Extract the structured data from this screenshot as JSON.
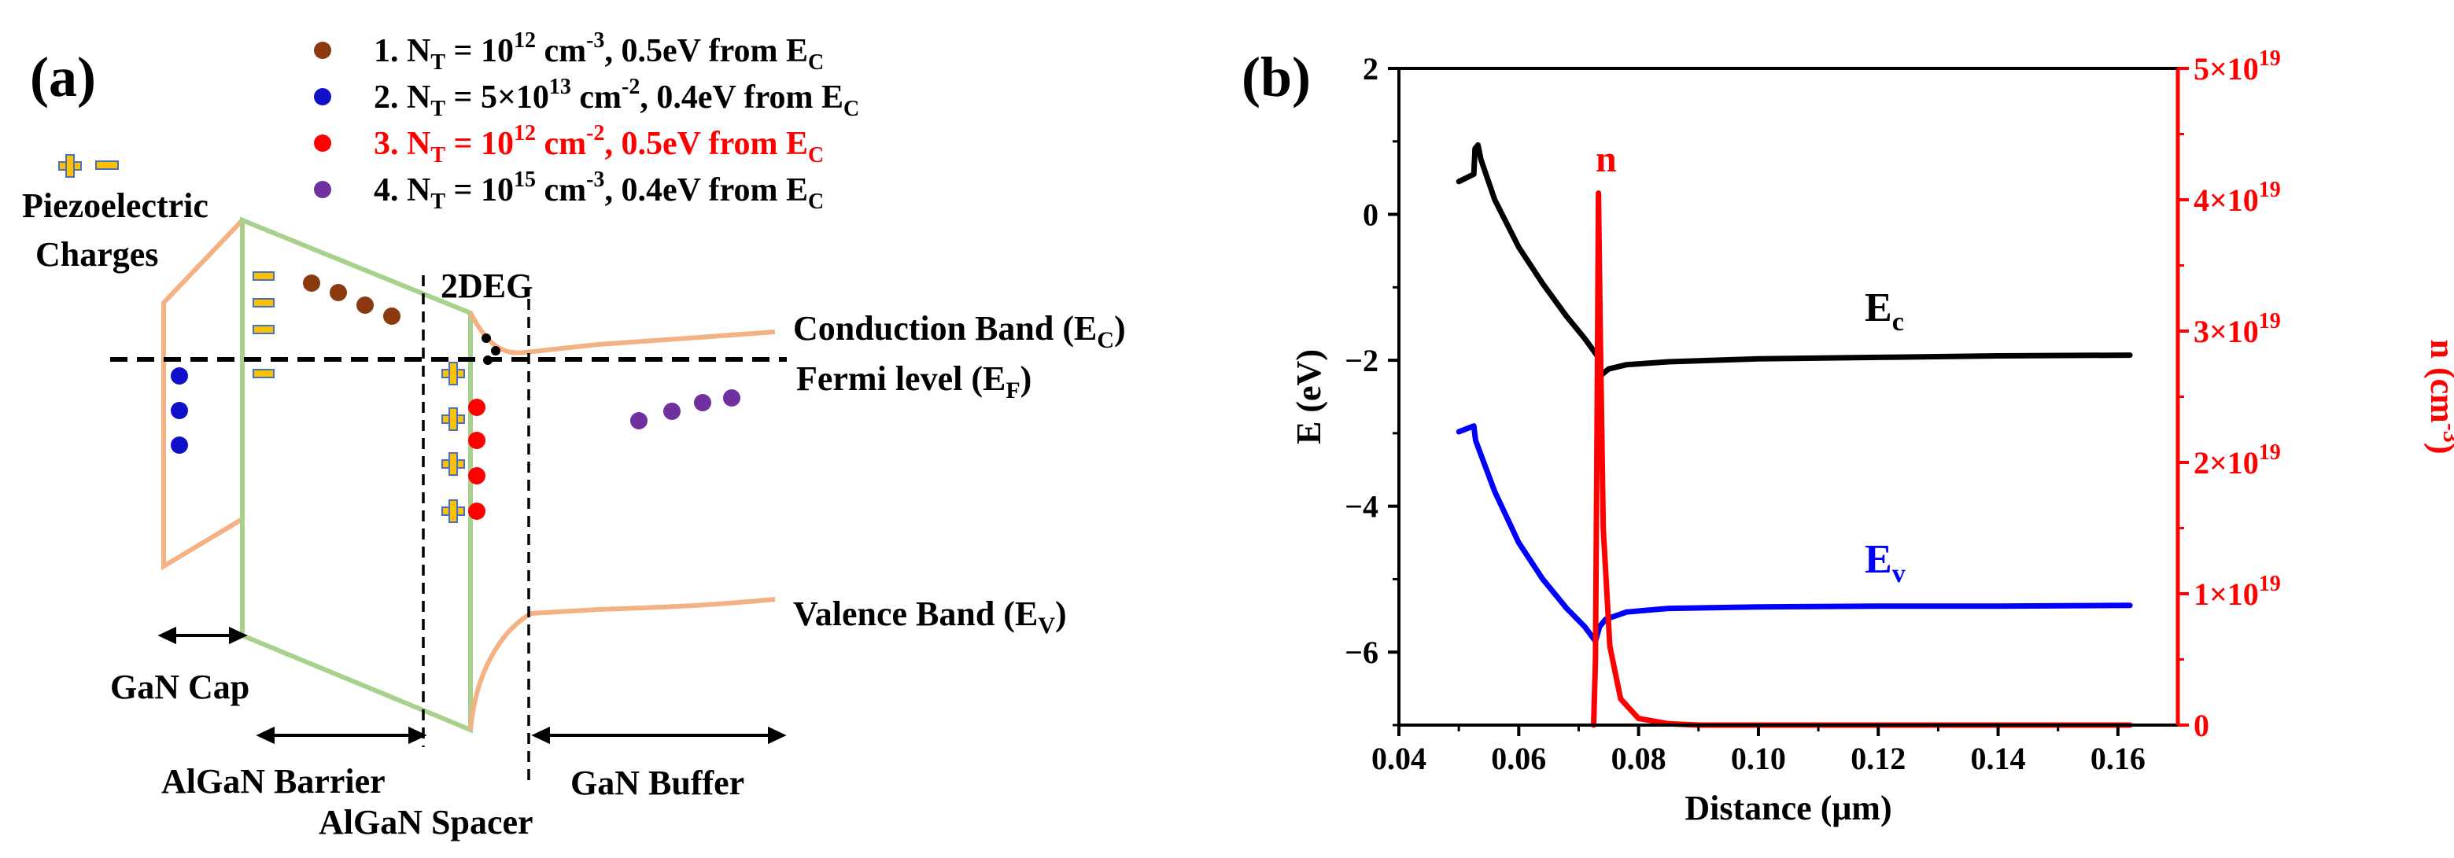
{
  "panel_a": {
    "panel_label": "(a)",
    "legend": [
      {
        "num": "1.",
        "pre": "N",
        "sub": "T",
        "mid1": " = 10",
        "sup": "12",
        "mid2": " cm",
        "sup2": "-3",
        "post": ", 0.5eV from E",
        "sub2": "C",
        "color": "#8B3A0F",
        "text_color": "#000000"
      },
      {
        "num": "2.",
        "pre": "N",
        "sub": "T",
        "mid1": " = 5×10",
        "sup": "13",
        "mid2": " cm",
        "sup2": "-2",
        "post": ", 0.4eV from E",
        "sub2": "C",
        "color": "#1010C8",
        "text_color": "#000000"
      },
      {
        "num": "3.",
        "pre": "N",
        "sub": "T",
        "mid1": " = 10",
        "sup": "12",
        "mid2": " cm",
        "sup2": "-2",
        "post": ", 0.5eV from E",
        "sub2": "C",
        "color": "#FF0000",
        "text_color": "#FF0000"
      },
      {
        "num": "4.",
        "pre": "N",
        "sub": "T",
        "mid1": " = 10",
        "sup": "15",
        "mid2": " cm",
        "sup2": "-3",
        "post": ", 0.4eV from E",
        "sub2": "C",
        "color": "#7030A0",
        "text_color": "#000000"
      }
    ],
    "piezo_label_1": "Piezoelectric",
    "piezo_label_2": "Charges",
    "twodeg_label": "2DEG",
    "cb_label": "Conduction Band (E",
    "cb_sub": "C",
    "ef_label": "Fermi level (E",
    "ef_sub": "F",
    "vb_label": "Valence Band (E",
    "vb_sub": "V",
    "region_labels": {
      "gan_cap": "GaN Cap",
      "algan_barrier": "AlGaN Barrier",
      "algan_spacer": "AlGaN Spacer",
      "gan_buffer": "GaN Buffer"
    },
    "colors": {
      "band_orange": "#F4B183",
      "band_green": "#A9D18E",
      "charge_yellow": "#FFC000",
      "charge_blue": "#4472C4"
    }
  },
  "panel_b": {
    "panel_label": "(b)",
    "curve_label_n": "n",
    "curve_label_ec": "E",
    "curve_label_ec_sub": "c",
    "curve_label_ev": "E",
    "curve_label_ev_sub": "v",
    "chart_data": {
      "type": "line",
      "xlabel": "Distance (μm)",
      "ylabel": "E (eV)",
      "y2label_base": "n (cm",
      "y2label_sup": "-3",
      "xlim": [
        0.04,
        0.17
      ],
      "ylim": [
        -7,
        2
      ],
      "y2lim": [
        0,
        5e+19
      ],
      "x_ticks": [
        0.04,
        0.06,
        0.08,
        0.1,
        0.12,
        0.14,
        0.16
      ],
      "x_tick_labels": [
        "0.04",
        "0.06",
        "0.08",
        "0.10",
        "0.12",
        "0.14",
        "0.16"
      ],
      "y_ticks": [
        2,
        0,
        -2,
        -4,
        -6
      ],
      "y_tick_labels": [
        "2",
        "0",
        "−2",
        "−4",
        "−6"
      ],
      "y2_ticks": [
        0,
        1e+19,
        2e+19,
        3e+19,
        4e+19,
        5e+19
      ],
      "y2_tick_labels": [
        {
          "base": "0",
          "exp": ""
        },
        {
          "base": "1×10",
          "exp": "19"
        },
        {
          "base": "2×10",
          "exp": "19"
        },
        {
          "base": "3×10",
          "exp": "19"
        },
        {
          "base": "4×10",
          "exp": "19"
        },
        {
          "base": "5×10",
          "exp": "19"
        }
      ],
      "series": [
        {
          "name": "Ec",
          "color": "#000000",
          "axis": "left",
          "points": [
            [
              0.05,
              0.45
            ],
            [
              0.0525,
              0.55
            ],
            [
              0.0527,
              0.9
            ],
            [
              0.0532,
              0.95
            ],
            [
              0.0537,
              0.75
            ],
            [
              0.056,
              0.2
            ],
            [
              0.06,
              -0.45
            ],
            [
              0.064,
              -0.95
            ],
            [
              0.068,
              -1.4
            ],
            [
              0.071,
              -1.7
            ],
            [
              0.0725,
              -1.87
            ],
            [
              0.0732,
              -1.95
            ],
            [
              0.0738,
              -2.2
            ],
            [
              0.075,
              -2.12
            ],
            [
              0.078,
              -2.06
            ],
            [
              0.085,
              -2.02
            ],
            [
              0.1,
              -1.98
            ],
            [
              0.12,
              -1.96
            ],
            [
              0.14,
              -1.94
            ],
            [
              0.162,
              -1.93
            ]
          ]
        },
        {
          "name": "Ev",
          "color": "#0000FF",
          "axis": "left",
          "points": [
            [
              0.05,
              -2.98
            ],
            [
              0.0525,
              -2.9
            ],
            [
              0.0528,
              -3.1
            ],
            [
              0.056,
              -3.8
            ],
            [
              0.06,
              -4.5
            ],
            [
              0.064,
              -5.0
            ],
            [
              0.068,
              -5.4
            ],
            [
              0.071,
              -5.65
            ],
            [
              0.0728,
              -5.85
            ],
            [
              0.0735,
              -5.65
            ],
            [
              0.0745,
              -5.55
            ],
            [
              0.078,
              -5.45
            ],
            [
              0.085,
              -5.4
            ],
            [
              0.1,
              -5.38
            ],
            [
              0.12,
              -5.37
            ],
            [
              0.14,
              -5.37
            ],
            [
              0.162,
              -5.36
            ]
          ]
        },
        {
          "name": "n",
          "color": "#FF0000",
          "axis": "right",
          "points": [
            [
              0.0725,
              0
            ],
            [
              0.0728,
              5e+18
            ],
            [
              0.0731,
              2.5e+19
            ],
            [
              0.0733,
              4.05e+19
            ],
            [
              0.0736,
              3e+19
            ],
            [
              0.0741,
              1.5e+19
            ],
            [
              0.0752,
              6e+18
            ],
            [
              0.077,
              2e+18
            ],
            [
              0.08,
              5e+17
            ],
            [
              0.085,
              1e+17
            ],
            [
              0.09,
              0
            ],
            [
              0.1,
              0
            ],
            [
              0.12,
              0
            ],
            [
              0.14,
              0
            ],
            [
              0.162,
              0
            ]
          ]
        }
      ]
    }
  }
}
